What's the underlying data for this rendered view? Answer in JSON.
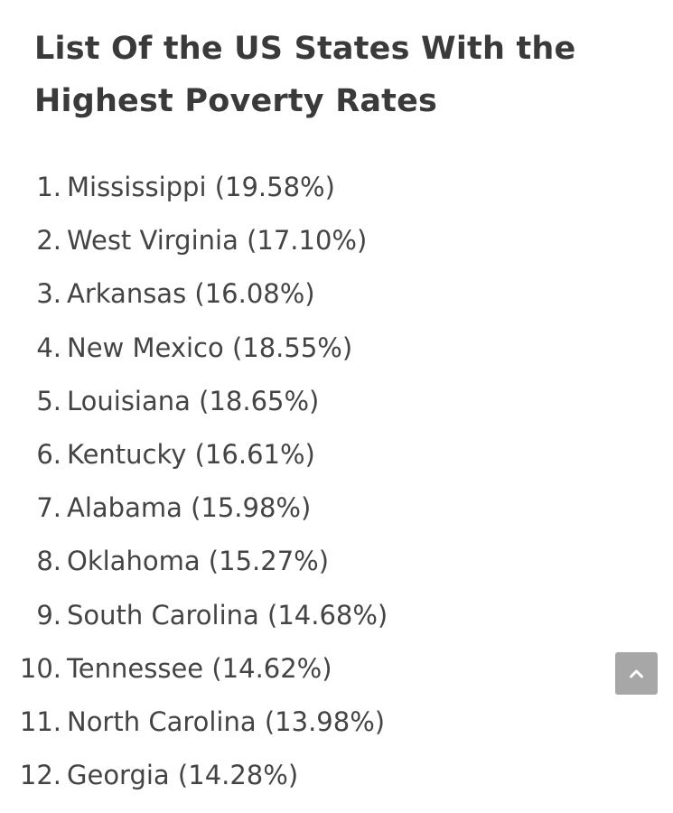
{
  "article": {
    "title": "List Of the US States With the Highest Poverty Rates",
    "items": [
      {
        "number": "1.",
        "text": "Mississippi (19.58%)"
      },
      {
        "number": "2.",
        "text": "West Virginia (17.10%)"
      },
      {
        "number": "3.",
        "text": "Arkansas (16.08%)"
      },
      {
        "number": "4.",
        "text": "New Mexico (18.55%)"
      },
      {
        "number": "5.",
        "text": "Louisiana (18.65%)"
      },
      {
        "number": "6.",
        "text": "Kentucky (16.61%)"
      },
      {
        "number": "7.",
        "text": "Alabama (15.98%)"
      },
      {
        "number": "8.",
        "text": "Oklahoma (15.27%)"
      },
      {
        "number": "9.",
        "text": "South Carolina (14.68%)"
      },
      {
        "number": "10.",
        "text": "Tennessee (14.62%)"
      },
      {
        "number": "11.",
        "text": "North Carolina (13.98%)"
      },
      {
        "number": "12.",
        "text": "Georgia (14.28%)"
      }
    ]
  },
  "scroll_top": {
    "icon": "chevron-up-icon",
    "color": "#a7a7a7"
  }
}
